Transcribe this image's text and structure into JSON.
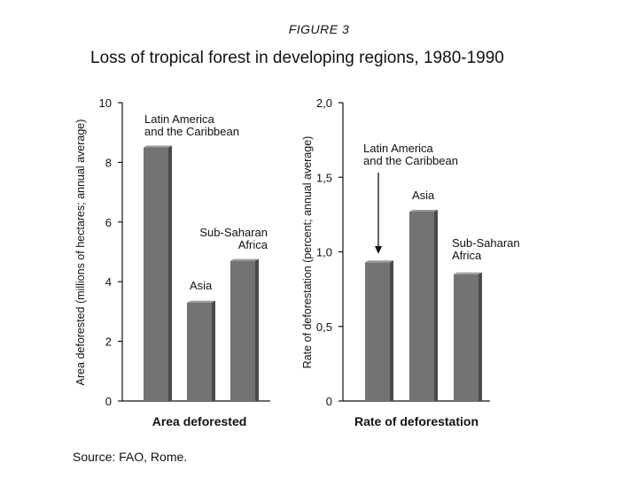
{
  "figure": {
    "label": "FIGURE 3",
    "title": "Loss of tropical forest in developing regions, 1980-1990",
    "source": "Source: FAO, Rome."
  },
  "colors": {
    "bar_front": "#737373",
    "bar_side": "#4a4a4a",
    "bar_top": "#9a9a9a",
    "axis": "#111111"
  },
  "chart_data": [
    {
      "type": "bar",
      "title": "Area deforested",
      "ylabel": "Area deforested (millions of hectares; annual average)",
      "xlabel": "Area deforested",
      "ylim": [
        0,
        10
      ],
      "ticks": [
        0,
        2,
        4,
        6,
        8,
        10
      ],
      "tick_labels": [
        "0",
        "2",
        "4",
        "6",
        "8",
        "10"
      ],
      "categories": [
        "Latin America and the Caribbean",
        "Asia",
        "Sub-Saharan Africa"
      ],
      "label_lines": [
        [
          "Latin America",
          "and the Caribbean"
        ],
        [
          "Asia"
        ],
        [
          "Sub-Saharan",
          "Africa"
        ]
      ],
      "values": [
        8.5,
        3.3,
        4.7
      ]
    },
    {
      "type": "bar",
      "title": "Rate of deforestation",
      "ylabel": "Rate of deforestation (percent; annual average)",
      "xlabel": "Rate of deforestation",
      "ylim": [
        0,
        2.0
      ],
      "ticks": [
        0,
        0.5,
        1.0,
        1.5,
        2.0
      ],
      "tick_labels": [
        "0",
        "0,5",
        "1,0",
        "1,5",
        "2,0"
      ],
      "categories": [
        "Latin America and the Caribbean",
        "Asia",
        "Sub-Saharan Africa"
      ],
      "label_lines": [
        [
          "Latin America",
          "and the Caribbean"
        ],
        [
          "Asia"
        ],
        [
          "Sub-Saharan",
          "Africa"
        ]
      ],
      "values": [
        0.93,
        1.27,
        0.85
      ]
    }
  ]
}
